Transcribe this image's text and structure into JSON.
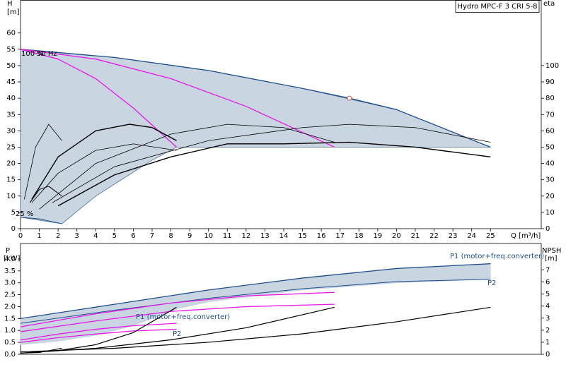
{
  "header": "Hydro MPC-F 3 CRI 5-8",
  "chart_data": [
    {
      "type": "line",
      "x_label": "Q [m³/h]",
      "y_label": "H",
      "y_unit": "[m]",
      "y2_label": "eta",
      "xlim": [
        0,
        27.7
      ],
      "xticks": [
        0,
        1,
        2,
        3,
        4,
        5,
        6,
        7,
        8,
        9,
        10,
        11,
        12,
        13,
        14,
        15,
        16,
        17,
        18,
        19,
        20,
        21,
        22,
        23,
        24,
        25
      ],
      "ylim": [
        0,
        70
      ],
      "yticks": [
        0,
        5,
        10,
        15,
        20,
        25,
        30,
        35,
        40,
        45,
        50,
        55,
        60
      ],
      "y2lim": [
        0,
        140
      ],
      "y2ticks": [
        0,
        10,
        20,
        30,
        40,
        50,
        60,
        70,
        80,
        90,
        100
      ],
      "annotations": [
        "100 %",
        "50 Hz",
        "25 %"
      ],
      "series": [
        {
          "kind": "area",
          "color": "#c9d5e1",
          "edge": "#4a6f96",
          "x": [
            0,
            5,
            10,
            15,
            20,
            25,
            25,
            17,
            8.3,
            7,
            5.5,
            4,
            2.2,
            0
          ],
          "values": [
            55,
            52.5,
            48.5,
            43,
            36.5,
            25,
            25,
            25,
            25,
            21,
            15.5,
            10,
            1.5,
            3.5
          ]
        },
        {
          "kind": "line",
          "color": "#1f4e8c",
          "line_width": 1.3,
          "x": [
            0,
            5,
            10,
            15,
            17.5,
            20,
            25
          ],
          "values": [
            55,
            52.5,
            48.5,
            43,
            40,
            36.5,
            25
          ]
        },
        {
          "kind": "line",
          "color": "#e619e6",
          "line_width": 1.3,
          "x": [
            0,
            2,
            4,
            6,
            8.3
          ],
          "values": [
            55,
            52,
            46,
            37,
            25
          ]
        },
        {
          "kind": "line",
          "color": "#e619e6",
          "line_width": 1.3,
          "x": [
            0,
            4,
            8,
            12,
            16.7
          ],
          "values": [
            55,
            52,
            46,
            37.5,
            25
          ]
        },
        {
          "kind": "line",
          "color": "#1f4e8c",
          "line_width": 1,
          "x": [
            0,
            1,
            2.2
          ],
          "values": [
            3.5,
            3,
            1.5
          ]
        },
        {
          "kind": "line",
          "color": "#000000",
          "line_width": 0.8,
          "axis": "y2",
          "x": [
            0.2,
            0.8,
            1.5,
            2.2
          ],
          "values": [
            18,
            50,
            64,
            54
          ]
        },
        {
          "kind": "line",
          "color": "#000000",
          "line_width": 1.4,
          "axis": "y2",
          "x": [
            0.6,
            2,
            4,
            5.8,
            7,
            8.3
          ],
          "values": [
            18,
            44,
            60,
            64,
            62,
            54
          ]
        },
        {
          "kind": "line",
          "color": "#000000",
          "line_width": 0.8,
          "axis": "y2",
          "x": [
            1,
            4,
            8,
            11,
            14,
            16.7
          ],
          "values": [
            12,
            40,
            58,
            64,
            62,
            53
          ]
        },
        {
          "kind": "line",
          "color": "#000000",
          "line_width": 0.8,
          "axis": "y2",
          "x": [
            1.7,
            5,
            10,
            15,
            17.5,
            21,
            25
          ],
          "values": [
            16,
            38,
            54,
            62,
            64,
            62,
            53
          ]
        },
        {
          "kind": "line",
          "color": "#000000",
          "line_width": 1.4,
          "axis": "y2",
          "x": [
            2,
            5,
            8,
            11,
            14,
            17.5,
            21,
            25
          ],
          "values": [
            14,
            33,
            44,
            52,
            52,
            53,
            50,
            44
          ]
        },
        {
          "kind": "line",
          "color": "#000000",
          "line_width": 0.8,
          "axis": "y2",
          "x": [
            0.6,
            2,
            4,
            6,
            8.3
          ],
          "values": [
            16,
            34,
            48,
            52,
            48
          ]
        },
        {
          "kind": "line",
          "color": "#000000",
          "line_width": 1,
          "axis": "y2",
          "x": [
            0.5,
            1,
            1.5,
            2.2
          ],
          "values": [
            16,
            24,
            26,
            20
          ]
        },
        {
          "kind": "marker",
          "color": "#e05050",
          "x": [
            17.5
          ],
          "values": [
            40
          ]
        }
      ]
    },
    {
      "type": "line",
      "y_label": "P",
      "y_unit": "[kW]",
      "y2_label": "NPSH",
      "y2_unit": "[m]",
      "xlim": [
        0,
        27.7
      ],
      "ylim": [
        0,
        4.65
      ],
      "yticks": [
        {
          "value": 0,
          "label": "0.0"
        },
        0.5,
        {
          "value": 1,
          "label": "1.0"
        },
        1.5,
        {
          "value": 2,
          "label": "2.0"
        },
        2.5,
        {
          "value": 3,
          "label": "3.0"
        },
        3.5,
        {
          "value": 4,
          "label": "4.0"
        }
      ],
      "y2lim": [
        0,
        9.2
      ],
      "y2ticks": [
        0,
        1,
        2,
        3,
        4,
        5,
        6,
        7
      ],
      "annotations": [
        "P1 (motor+freq.converter)",
        "P2",
        "P1 (motor+freq.converter)",
        "P2"
      ],
      "series": [
        {
          "kind": "area",
          "color": "#c9d5e1",
          "edge": "#c9d5e1",
          "x": [
            0,
            5,
            10,
            15,
            20,
            25,
            25,
            20,
            15,
            10,
            8.3,
            6,
            4,
            2,
            0
          ],
          "values": [
            1.5,
            2.1,
            2.7,
            3.2,
            3.6,
            3.8,
            3.15,
            3.0,
            2.7,
            2.2,
            1.9,
            1.2,
            0.8,
            0.55,
            0.4
          ]
        },
        {
          "kind": "line",
          "color": "#1f4e8c",
          "line_width": 1.3,
          "x": [
            0,
            5,
            10,
            15,
            20,
            25
          ],
          "values": [
            1.5,
            2.1,
            2.7,
            3.2,
            3.6,
            3.8
          ]
        },
        {
          "kind": "line",
          "color": "#1f4e8c",
          "line_width": 1,
          "x": [
            0,
            5,
            10,
            15,
            20,
            25
          ],
          "values": [
            1.3,
            1.85,
            2.35,
            2.75,
            3.05,
            3.15
          ]
        },
        {
          "kind": "line",
          "color": "#e619e6",
          "line_width": 1.3,
          "x": [
            0,
            4,
            8,
            12,
            16.7
          ],
          "values": [
            1.15,
            1.7,
            2.15,
            2.45,
            2.6
          ]
        },
        {
          "kind": "line",
          "color": "#e619e6",
          "line_width": 1.3,
          "x": [
            0,
            4,
            8,
            12,
            16.7
          ],
          "values": [
            0.95,
            1.4,
            1.8,
            2.0,
            2.1
          ]
        },
        {
          "kind": "line",
          "color": "#e619e6",
          "line_width": 1.3,
          "x": [
            0,
            2,
            4,
            6,
            8.3
          ],
          "values": [
            0.6,
            0.85,
            1.05,
            1.2,
            1.3
          ]
        },
        {
          "kind": "line",
          "color": "#e619e6",
          "line_width": 1.3,
          "x": [
            0,
            2,
            4,
            6,
            8.3
          ],
          "values": [
            0.5,
            0.7,
            0.85,
            0.98,
            1.05
          ]
        },
        {
          "kind": "line",
          "color": "#000000",
          "line_width": 1.2,
          "axis": "y2",
          "x": [
            0,
            2,
            4,
            6,
            8.3
          ],
          "values": [
            0.1,
            0.3,
            0.8,
            1.8,
            3.9
          ]
        },
        {
          "kind": "line",
          "color": "#000000",
          "line_width": 1.2,
          "axis": "y2",
          "x": [
            0,
            4,
            8,
            12,
            16.7
          ],
          "values": [
            0.1,
            0.5,
            1.2,
            2.2,
            3.9
          ]
        },
        {
          "kind": "line",
          "color": "#000000",
          "line_width": 1.2,
          "axis": "y2",
          "x": [
            0,
            5,
            10,
            15,
            20,
            25
          ],
          "values": [
            0.2,
            0.5,
            1,
            1.7,
            2.7,
            3.9
          ]
        },
        {
          "kind": "line",
          "color": "#000000",
          "line_width": 1.2,
          "axis": "y2",
          "x": [
            0,
            1,
            2.2
          ],
          "values": [
            0.1,
            0.15,
            0.5
          ]
        }
      ]
    }
  ]
}
